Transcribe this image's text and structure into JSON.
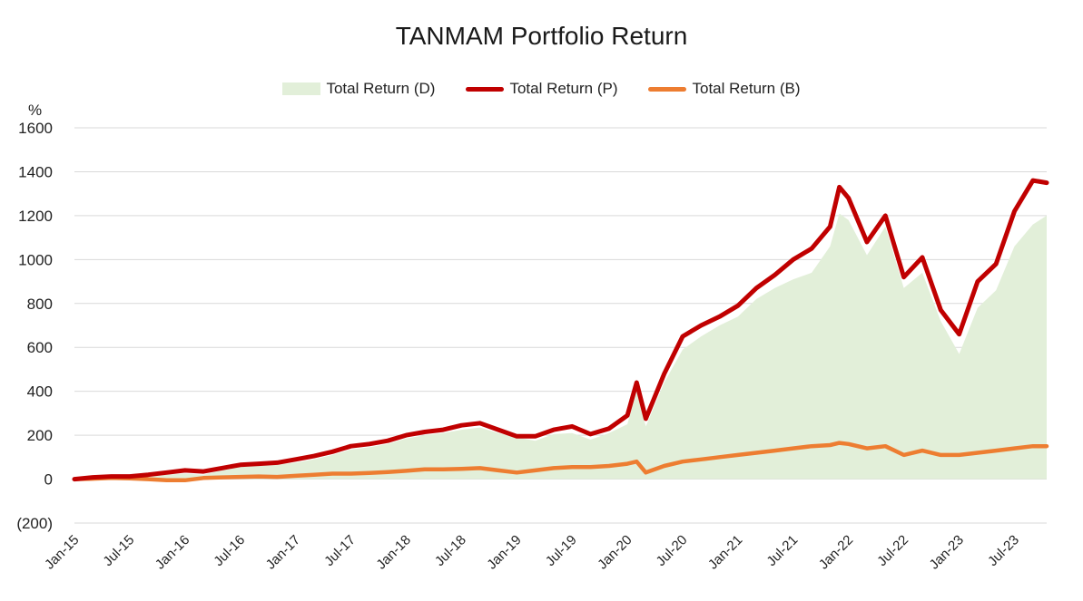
{
  "chart_data": {
    "type": "line",
    "title": "TANMAM Portfolio Return",
    "ylabel": "%",
    "xlabel": "",
    "ylim": [
      -200,
      1600
    ],
    "y_ticks": [
      {
        "value": 1600,
        "label": "1600",
        "color": "#222222"
      },
      {
        "value": 1400,
        "label": "1400",
        "color": "#222222"
      },
      {
        "value": 1200,
        "label": "1200",
        "color": "#222222"
      },
      {
        "value": 1000,
        "label": "1000",
        "color": "#222222"
      },
      {
        "value": 800,
        "label": "800",
        "color": "#222222"
      },
      {
        "value": 600,
        "label": "600",
        "color": "#222222"
      },
      {
        "value": 400,
        "label": "400",
        "color": "#222222"
      },
      {
        "value": 200,
        "label": "200",
        "color": "#222222"
      },
      {
        "value": 0,
        "label": "0",
        "color": "#222222"
      },
      {
        "value": -200,
        "label": "(200)",
        "color": "#ff0000"
      }
    ],
    "x_ticks": [
      "Jan-15",
      "Jul-15",
      "Jan-16",
      "Jul-16",
      "Jan-17",
      "Jul-17",
      "Jan-18",
      "Jul-18",
      "Jan-19",
      "Jul-19",
      "Jan-20",
      "Jul-20",
      "Jan-21",
      "Jul-21",
      "Jan-22",
      "Jul-22",
      "Jan-23",
      "Jul-23"
    ],
    "x_months": [
      "Jan-15",
      "Mar-15",
      "May-15",
      "Jul-15",
      "Sep-15",
      "Nov-15",
      "Jan-16",
      "Mar-16",
      "May-16",
      "Jul-16",
      "Sep-16",
      "Nov-16",
      "Jan-17",
      "Mar-17",
      "May-17",
      "Jul-17",
      "Sep-17",
      "Nov-17",
      "Jan-18",
      "Mar-18",
      "May-18",
      "Jul-18",
      "Sep-18",
      "Nov-18",
      "Jan-19",
      "Mar-19",
      "May-19",
      "Jul-19",
      "Sep-19",
      "Nov-19",
      "Jan-20",
      "Feb-20",
      "Mar-20",
      "May-20",
      "Jul-20",
      "Sep-20",
      "Nov-20",
      "Jan-21",
      "Mar-21",
      "May-21",
      "Jul-21",
      "Sep-21",
      "Nov-21",
      "Dec-21",
      "Jan-22",
      "Mar-22",
      "May-22",
      "Jul-22",
      "Sep-22",
      "Nov-22",
      "Jan-23",
      "Mar-23",
      "May-23",
      "Jul-23",
      "Sep-23",
      "Oct-23"
    ],
    "x_index": [
      0,
      2,
      4,
      6,
      8,
      10,
      12,
      14,
      16,
      18,
      20,
      22,
      24,
      26,
      28,
      30,
      32,
      34,
      36,
      38,
      40,
      42,
      44,
      46,
      48,
      50,
      52,
      54,
      56,
      58,
      60,
      61,
      62,
      64,
      66,
      68,
      70,
      72,
      74,
      76,
      78,
      80,
      82,
      83,
      84,
      86,
      88,
      90,
      92,
      94,
      96,
      98,
      100,
      102,
      104,
      105.5
    ],
    "series": [
      {
        "name": "Total Return (D)",
        "style": "area",
        "color": "#e2efd9",
        "values": [
          0,
          5,
          10,
          8,
          15,
          20,
          25,
          20,
          40,
          55,
          60,
          65,
          75,
          90,
          110,
          135,
          145,
          160,
          185,
          200,
          210,
          225,
          235,
          210,
          190,
          175,
          205,
          210,
          180,
          210,
          250,
          400,
          240,
          440,
          590,
          650,
          700,
          740,
          820,
          870,
          910,
          940,
          1060,
          1210,
          1180,
          1020,
          1150,
          870,
          940,
          720,
          570,
          780,
          860,
          1060,
          1160,
          1200
        ]
      },
      {
        "name": "Total Return (P)",
        "style": "line",
        "color": "#c00000",
        "values": [
          0,
          8,
          12,
          12,
          20,
          30,
          40,
          35,
          50,
          65,
          70,
          75,
          90,
          105,
          125,
          150,
          160,
          175,
          200,
          215,
          225,
          245,
          255,
          225,
          195,
          195,
          225,
          240,
          205,
          230,
          290,
          440,
          275,
          480,
          650,
          700,
          740,
          790,
          870,
          930,
          1000,
          1050,
          1150,
          1330,
          1280,
          1080,
          1200,
          920,
          1010,
          770,
          660,
          900,
          980,
          1220,
          1360,
          1350
        ]
      },
      {
        "name": "Total Return (B)",
        "style": "line",
        "color": "#ed7d31",
        "values": [
          0,
          2,
          5,
          3,
          0,
          -5,
          -5,
          5,
          8,
          10,
          12,
          10,
          15,
          20,
          25,
          25,
          28,
          32,
          38,
          45,
          45,
          47,
          50,
          40,
          30,
          40,
          50,
          55,
          55,
          60,
          70,
          80,
          30,
          60,
          80,
          90,
          100,
          110,
          120,
          130,
          140,
          150,
          155,
          165,
          160,
          140,
          150,
          110,
          130,
          110,
          110,
          120,
          130,
          140,
          150,
          150
        ]
      }
    ]
  }
}
